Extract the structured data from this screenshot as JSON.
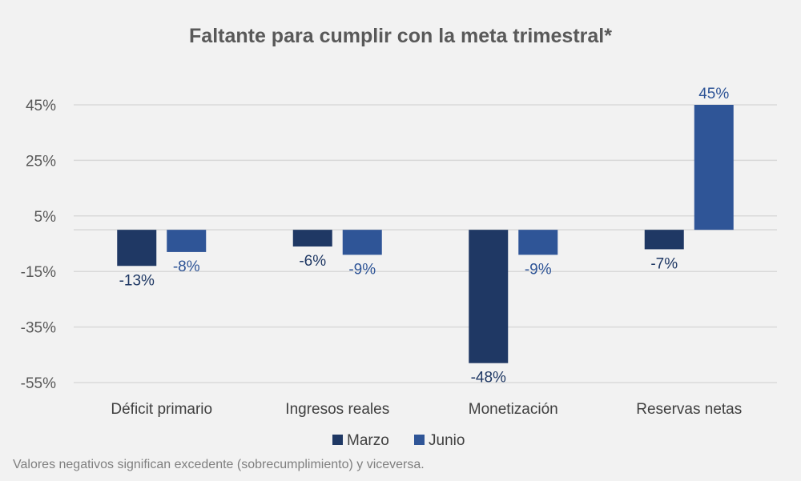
{
  "chart_data": {
    "type": "bar",
    "title": "Faltante para cumplir con la meta trimestral*",
    "categories": [
      "Déficit primario",
      "Ingresos reales",
      "Monetización",
      "Reservas netas"
    ],
    "series": [
      {
        "name": "Marzo",
        "color": "#1f3864",
        "values": [
          -13,
          -6,
          -48,
          -7
        ],
        "labels": [
          "-13%",
          "-6%",
          "-48%",
          "-7%"
        ]
      },
      {
        "name": "Junio",
        "color": "#2f5597",
        "values": [
          -8,
          -9,
          -9,
          45
        ],
        "labels": [
          "-8%",
          "-9%",
          "-9%",
          "45%"
        ]
      }
    ],
    "yticks": [
      45,
      25,
      5,
      -15,
      -35,
      -55
    ],
    "ytick_labels": [
      "45%",
      "25%",
      "5%",
      "-15%",
      "-35%",
      "-55%"
    ],
    "ylim": [
      -55,
      45
    ],
    "grid": true,
    "legend_position": "bottom",
    "footnote": "Valores negativos significan excedente (sobrecumplimiento) y viceversa."
  }
}
